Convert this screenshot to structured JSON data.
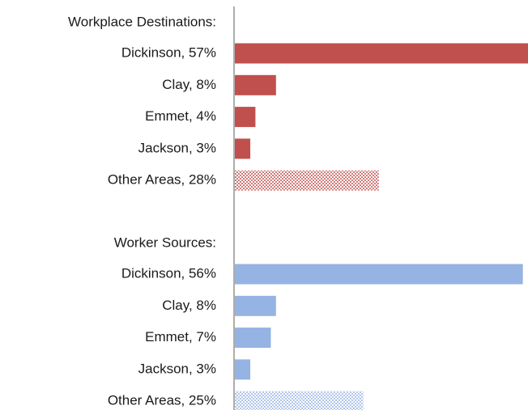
{
  "chart_data": {
    "type": "bar",
    "xlim": [
      0,
      57
    ],
    "series": [
      {
        "name": "Workplace Destinations:",
        "color": "#c0504d",
        "categories": [
          "Dickinson, 57%",
          "Clay, 8%",
          "Emmet, 4%",
          "Jackson, 3%",
          "Other Areas, 28%"
        ],
        "values": [
          57,
          8,
          4,
          3,
          28
        ],
        "hatched": [
          false,
          false,
          false,
          false,
          true
        ]
      },
      {
        "name": "Worker Sources:",
        "color": "#95b3e3",
        "categories": [
          "Dickinson, 56%",
          "Clay, 8%",
          "Emmet, 7%",
          "Jackson, 3%",
          "Other Areas, 25%"
        ],
        "values": [
          56,
          8,
          7,
          3,
          25
        ],
        "hatched": [
          false,
          false,
          false,
          false,
          true
        ]
      }
    ]
  }
}
